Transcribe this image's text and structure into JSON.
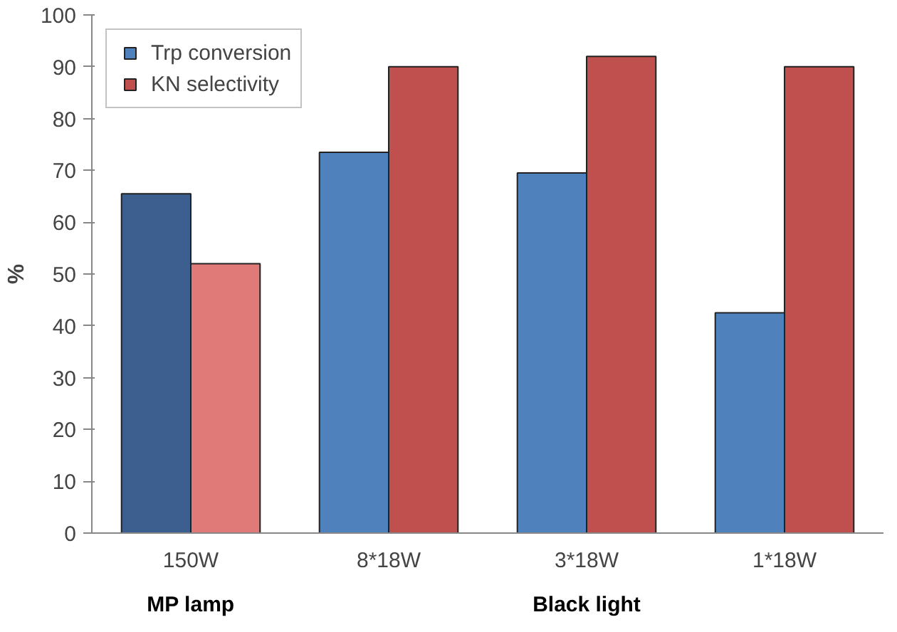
{
  "chart_data": {
    "type": "bar",
    "ylabel": "%",
    "categories": [
      "150W",
      "8*18W",
      "3*18W",
      "1*18W"
    ],
    "series": [
      {
        "name": "Trp conversion",
        "color": "#4f81bd",
        "colors": [
          "#3d5f8f",
          "#4f81bd",
          "#4f81bd",
          "#4f81bd"
        ],
        "values": [
          65.5,
          73.5,
          69.5,
          42.5
        ]
      },
      {
        "name": "KN selectivity",
        "color": "#c0504d",
        "colors": [
          "#e07a78",
          "#c0504d",
          "#c0504d",
          "#c0504d"
        ],
        "values": [
          52,
          90,
          92,
          90
        ]
      }
    ],
    "ylim": [
      0,
      100
    ],
    "yticks": [
      0,
      10,
      20,
      30,
      40,
      50,
      60,
      70,
      80,
      90,
      100
    ],
    "grid": false,
    "legend": "top left",
    "annotations": [
      "MP lamp",
      "Black light"
    ]
  }
}
